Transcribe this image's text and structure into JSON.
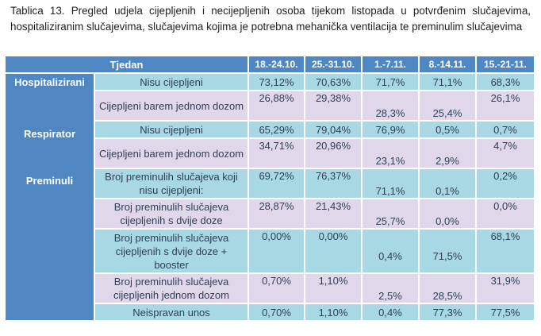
{
  "caption": "Tablica 13. Pregled udjela cijepljenih i necijepljenih osoba tijekom listopada u potvrđenim slučajevima, hospitaliziranim slučajevima, slučajevima kojima je potrebna mehanička ventilacija te preminulim slučajevima",
  "header": {
    "tjedan": "Tjedan",
    "weeks": [
      "18.-24.10.",
      "25.-31.10.",
      "1.-7.11.",
      "8.-14.11.",
      "15.-21-11."
    ]
  },
  "groups": {
    "hospitalizirani": "Hospitalizirani",
    "respirator": "Respirator",
    "preminuli": "Preminuli"
  },
  "rows": [
    {
      "label": "Nisu cijepljeni",
      "values": [
        "73,12%",
        "70,63%",
        "71,7%",
        "71,1%",
        "68,3%"
      ]
    },
    {
      "label": "Cijepljeni barem jednom dozom",
      "values": [
        "26,88%",
        "29,38%",
        "28,3%",
        "25,4%",
        "26,1%"
      ]
    },
    {
      "label": "Nisu cijepljeni",
      "values": [
        "65,29%",
        "79,04%",
        "76,9%",
        "0,5%",
        "0,7%"
      ]
    },
    {
      "label": "Cijepljeni barem jednom dozom",
      "values": [
        "34,71%",
        "20,96%",
        "23,1%",
        "2,9%",
        "4,7%"
      ]
    },
    {
      "label": "Broj preminulih slučajeva koji nisu cijepljeni:",
      "values": [
        "69,72%",
        "76,37%",
        "71,1%",
        "0,1%",
        "0,2%"
      ]
    },
    {
      "label": "Broj preminulih slučajeva cijepljenih s dvije doze",
      "values": [
        "28,87%",
        "21,43%",
        "25,7%",
        "0,0%",
        "0,0%"
      ]
    },
    {
      "label": "Broj preminulih slučajeva cijepljenih s dvije doze + booster",
      "values": [
        "0,00%",
        "0,00%",
        "0,4%",
        "71,5%",
        "68,1%"
      ]
    },
    {
      "label": "Broj preminulih slučajeva cijepljenih jednom dozom",
      "values": [
        "0,70%",
        "1,10%",
        "2,5%",
        "28,5%",
        "31,9%"
      ]
    },
    {
      "label": "Neispravan unos",
      "values": [
        "0,70%",
        "1,10%",
        "0,4%",
        "77,3%",
        "77,5%"
      ]
    }
  ]
}
